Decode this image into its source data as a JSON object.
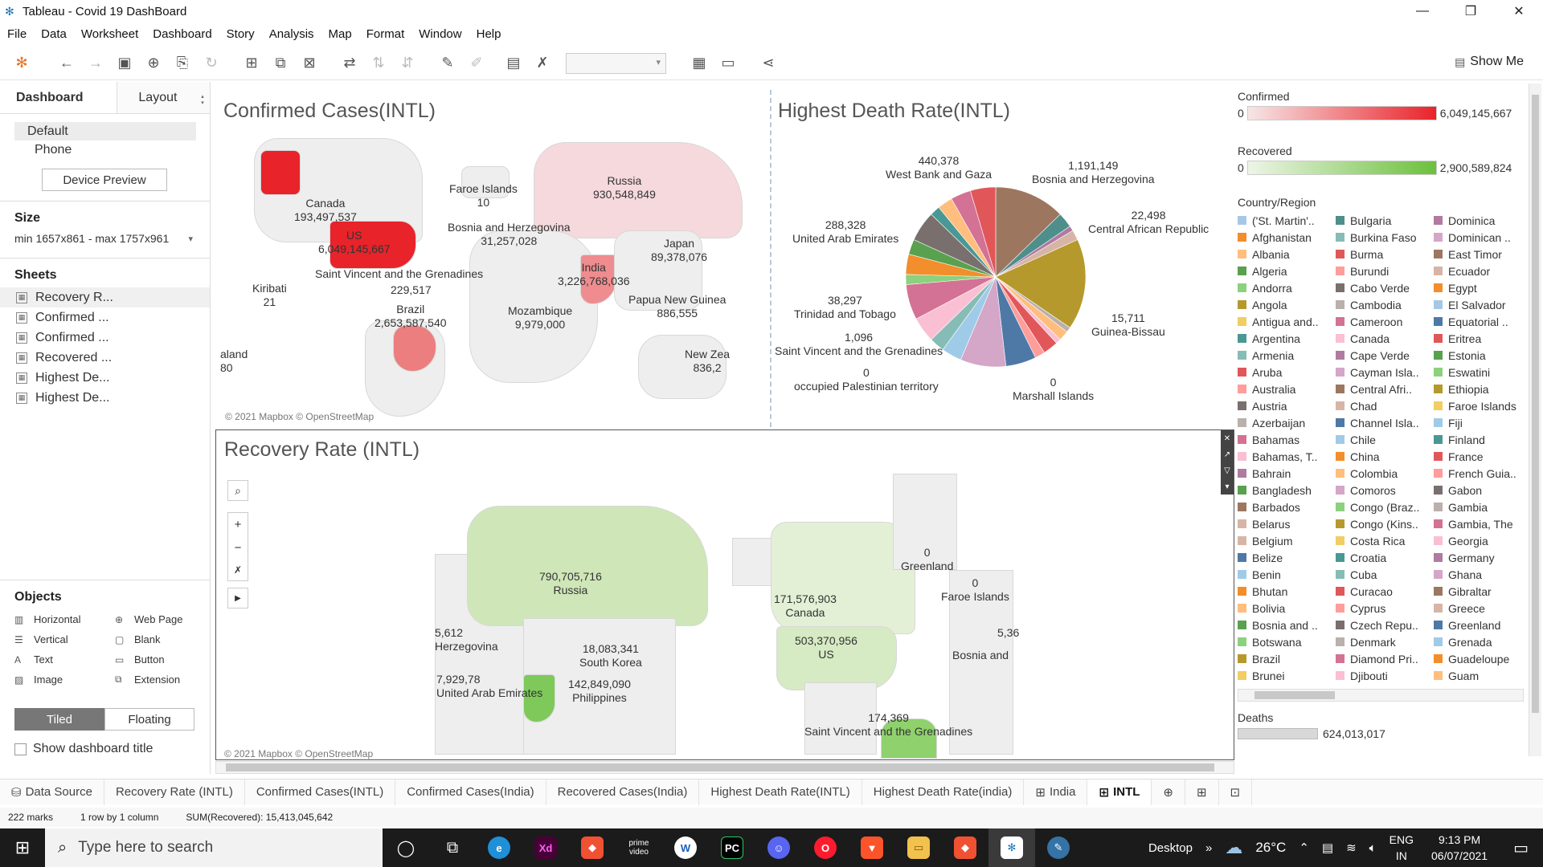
{
  "window": {
    "title": "Tableau - Covid 19 DashBoard",
    "controls": [
      "—",
      "❐",
      "✕"
    ]
  },
  "menu": [
    "File",
    "Data",
    "Worksheet",
    "Dashboard",
    "Story",
    "Analysis",
    "Map",
    "Format",
    "Window",
    "Help"
  ],
  "toolbar": {
    "show_me": "Show Me"
  },
  "left_panel": {
    "tabs": {
      "dashboard": "Dashboard",
      "layout": "Layout"
    },
    "devices": [
      "Default",
      "Phone"
    ],
    "device_preview": "Device Preview",
    "size_title": "Size",
    "size_value": "min 1657x861 - max 1757x961",
    "sheets_title": "Sheets",
    "sheets": [
      "Recovery R...",
      "Confirmed ...",
      "Confirmed ...",
      "Recovered ...",
      "Highest De...",
      "Highest De..."
    ],
    "objects_title": "Objects",
    "objects": [
      {
        "label": "Horizontal",
        "icon": "▥"
      },
      {
        "label": "Web Page",
        "icon": "⊕"
      },
      {
        "label": "Vertical",
        "icon": "☰"
      },
      {
        "label": "Blank",
        "icon": "▢"
      },
      {
        "label": "Text",
        "icon": "A"
      },
      {
        "label": "Button",
        "icon": "▭"
      },
      {
        "label": "Image",
        "icon": "▨"
      },
      {
        "label": "Extension",
        "icon": "⧉"
      }
    ],
    "layout_modes": {
      "tiled": "Tiled",
      "floating": "Floating"
    },
    "show_title": "Show dashboard title"
  },
  "confirmed_pane": {
    "title": "Confirmed Cases(INTL)",
    "labels": [
      {
        "text": "Canada\n193,497,537"
      },
      {
        "text": "US\n6,049,145,667"
      },
      {
        "text": "Faroe Islands\n10"
      },
      {
        "text": "Russia\n930,548,849"
      },
      {
        "text": "Bosnia and Herzegovina\n31,257,028"
      },
      {
        "text": "Japan\n89,378,076"
      },
      {
        "text": "India\n3,226,768,036"
      },
      {
        "text": "Saint Vincent and the Grenadines"
      },
      {
        "text": "Kiribati\n21"
      },
      {
        "text": "229,517"
      },
      {
        "text": "Brazil\n2,653,587,540"
      },
      {
        "text": "Mozambique\n9,979,000"
      },
      {
        "text": "Papua New Guinea\n886,555"
      },
      {
        "text": "New Zea\n836,2"
      },
      {
        "text": "aland\n80"
      }
    ],
    "credit": "© 2021 Mapbox © OpenStreetMap"
  },
  "death_pane": {
    "title": "Highest Death Rate(INTL)",
    "labels": [
      {
        "text": "440,378\nWest Bank and Gaza"
      },
      {
        "text": "1,191,149\nBosnia and Herzegovina"
      },
      {
        "text": "22,498\nCentral African Republic"
      },
      {
        "text": "288,328\nUnited Arab Emirates"
      },
      {
        "text": "15,711\nGuinea-Bissau"
      },
      {
        "text": "38,297\nTrinidad and Tobago"
      },
      {
        "text": "1,096\nSaint Vincent and the Grenadines"
      },
      {
        "text": "0\noccupied Palestinian territory"
      },
      {
        "text": "0\nMarshall Islands"
      }
    ]
  },
  "recovery_pane": {
    "title": "Recovery Rate (INTL)",
    "labels": [
      {
        "text": "790,705,716\nRussia"
      },
      {
        "text": "0\nGreenland"
      },
      {
        "text": "171,576,903\nCanada"
      },
      {
        "text": "0\nFaroe Islands"
      },
      {
        "text": "503,370,956\nUS"
      },
      {
        "text": "Bosnia and"
      },
      {
        "text": "18,083,341\nSouth Korea"
      },
      {
        "text": "142,849,090\nPhilippines"
      },
      {
        "text": "7,929,78\nUnited Arab Emirates"
      },
      {
        "text": "5,612\nHerzegovina"
      },
      {
        "text": "174,369\nSaint Vincent and the Grenadines"
      },
      {
        "text": "5,36"
      }
    ],
    "credit": "© 2021 Mapbox © OpenStreetMap"
  },
  "legend": {
    "confirmed": {
      "title": "Confirmed",
      "min": "0",
      "max": "6,049,145,667",
      "color_low": "#f7e6e6",
      "color_high": "#e8232a"
    },
    "recovered": {
      "title": "Recovered",
      "min": "0",
      "max": "2,900,589,824",
      "color_low": "#eef5e6",
      "color_high": "#6cc03c"
    },
    "country_title": "Country/Region",
    "countries": [
      {
        "name": "('St. Martin'..",
        "color": "#a6c8e6"
      },
      {
        "name": "Bulgaria",
        "color": "#4e8f8b"
      },
      {
        "name": "Dominica",
        "color": "#b07aa1"
      },
      {
        "name": "Afghanistan",
        "color": "#f28e2b"
      },
      {
        "name": "Burkina Faso",
        "color": "#86bcb6"
      },
      {
        "name": "Dominican ..",
        "color": "#d4a6c8"
      },
      {
        "name": "Albania",
        "color": "#ffbe7d"
      },
      {
        "name": "Burma",
        "color": "#e15759"
      },
      {
        "name": "East Timor",
        "color": "#9d7660"
      },
      {
        "name": "Algeria",
        "color": "#59a14f"
      },
      {
        "name": "Burundi",
        "color": "#ff9d9a"
      },
      {
        "name": "Ecuador",
        "color": "#d7b5a6"
      },
      {
        "name": "Andorra",
        "color": "#8cd17d"
      },
      {
        "name": "Cabo Verde",
        "color": "#79706e"
      },
      {
        "name": "Egypt",
        "color": "#f28e2b"
      },
      {
        "name": "Angola",
        "color": "#b6992d"
      },
      {
        "name": "Cambodia",
        "color": "#bab0ac"
      },
      {
        "name": "El Salvador",
        "color": "#a6c8e6"
      },
      {
        "name": "Antigua and..",
        "color": "#f1ce63"
      },
      {
        "name": "Cameroon",
        "color": "#d37295"
      },
      {
        "name": "Equatorial ..",
        "color": "#4e79a7"
      },
      {
        "name": "Argentina",
        "color": "#499894"
      },
      {
        "name": "Canada",
        "color": "#fabfd2"
      },
      {
        "name": "Eritrea",
        "color": "#e15759"
      },
      {
        "name": "Armenia",
        "color": "#86bcb6"
      },
      {
        "name": "Cape Verde",
        "color": "#b07aa1"
      },
      {
        "name": "Estonia",
        "color": "#59a14f"
      },
      {
        "name": "Aruba",
        "color": "#e15759"
      },
      {
        "name": "Cayman Isla..",
        "color": "#d4a6c8"
      },
      {
        "name": "Eswatini",
        "color": "#8cd17d"
      },
      {
        "name": "Australia",
        "color": "#ff9d9a"
      },
      {
        "name": "Central Afri..",
        "color": "#9d7660"
      },
      {
        "name": "Ethiopia",
        "color": "#b6992d"
      },
      {
        "name": "Austria",
        "color": "#79706e"
      },
      {
        "name": "Chad",
        "color": "#d7b5a6"
      },
      {
        "name": "Faroe Islands",
        "color": "#f1ce63"
      },
      {
        "name": "Azerbaijan",
        "color": "#bab0ac"
      },
      {
        "name": "Channel Isla..",
        "color": "#4e79a7"
      },
      {
        "name": "Fiji",
        "color": "#a0cbe8"
      },
      {
        "name": "Bahamas",
        "color": "#d37295"
      },
      {
        "name": "Chile",
        "color": "#a0cbe8"
      },
      {
        "name": "Finland",
        "color": "#499894"
      },
      {
        "name": "Bahamas, T..",
        "color": "#fabfd2"
      },
      {
        "name": "China",
        "color": "#f28e2b"
      },
      {
        "name": "France",
        "color": "#e15759"
      },
      {
        "name": "Bahrain",
        "color": "#b07aa1"
      },
      {
        "name": "Colombia",
        "color": "#ffbe7d"
      },
      {
        "name": "French Guia..",
        "color": "#ff9d9a"
      },
      {
        "name": "Bangladesh",
        "color": "#59a14f"
      },
      {
        "name": "Comoros",
        "color": "#d4a6c8"
      },
      {
        "name": "Gabon",
        "color": "#79706e"
      },
      {
        "name": "Barbados",
        "color": "#9d7660"
      },
      {
        "name": "Congo (Braz..",
        "color": "#8cd17d"
      },
      {
        "name": "Gambia",
        "color": "#bab0ac"
      },
      {
        "name": "Belarus",
        "color": "#d7b5a6"
      },
      {
        "name": "Congo (Kins..",
        "color": "#b6992d"
      },
      {
        "name": "Gambia, The",
        "color": "#d37295"
      },
      {
        "name": "Belgium",
        "color": "#d7b5a6"
      },
      {
        "name": "Costa Rica",
        "color": "#f1ce63"
      },
      {
        "name": "Georgia",
        "color": "#fabfd2"
      },
      {
        "name": "Belize",
        "color": "#4e79a7"
      },
      {
        "name": "Croatia",
        "color": "#499894"
      },
      {
        "name": "Germany",
        "color": "#b07aa1"
      },
      {
        "name": "Benin",
        "color": "#a0cbe8"
      },
      {
        "name": "Cuba",
        "color": "#86bcb6"
      },
      {
        "name": "Ghana",
        "color": "#d4a6c8"
      },
      {
        "name": "Bhutan",
        "color": "#f28e2b"
      },
      {
        "name": "Curacao",
        "color": "#e15759"
      },
      {
        "name": "Gibraltar",
        "color": "#9d7660"
      },
      {
        "name": "Bolivia",
        "color": "#ffbe7d"
      },
      {
        "name": "Cyprus",
        "color": "#ff9d9a"
      },
      {
        "name": "Greece",
        "color": "#d7b5a6"
      },
      {
        "name": "Bosnia and ..",
        "color": "#59a14f"
      },
      {
        "name": "Czech Repu..",
        "color": "#79706e"
      },
      {
        "name": "Greenland",
        "color": "#4e79a7"
      },
      {
        "name": "Botswana",
        "color": "#8cd17d"
      },
      {
        "name": "Denmark",
        "color": "#bab0ac"
      },
      {
        "name": "Grenada",
        "color": "#a0cbe8"
      },
      {
        "name": "Brazil",
        "color": "#b6992d"
      },
      {
        "name": "Diamond Pri..",
        "color": "#d37295"
      },
      {
        "name": "Guadeloupe",
        "color": "#f28e2b"
      },
      {
        "name": "Brunei",
        "color": "#f1ce63"
      },
      {
        "name": "Djibouti",
        "color": "#fabfd2"
      },
      {
        "name": "Guam",
        "color": "#ffbe7d"
      }
    ],
    "deaths_title": "Deaths",
    "deaths_value": "624,013,017"
  },
  "sheet_tabs": [
    {
      "label": "Data Source",
      "icon": "⛁",
      "active": false
    },
    {
      "label": "Recovery Rate (INTL)",
      "icon": "",
      "active": false
    },
    {
      "label": "Confirmed Cases(INTL)",
      "icon": "",
      "active": false
    },
    {
      "label": "Confirmed Cases(India)",
      "icon": "",
      "active": false
    },
    {
      "label": "Recovered Cases(India)",
      "icon": "",
      "active": false
    },
    {
      "label": "Highest Death Rate(INTL)",
      "icon": "",
      "active": false
    },
    {
      "label": "Highest Death Rate(india)",
      "icon": "",
      "active": false
    },
    {
      "label": "India",
      "icon": "⊞",
      "active": false
    },
    {
      "label": "INTL",
      "icon": "⊞",
      "active": true
    }
  ],
  "status": {
    "marks": "222 marks",
    "rows": "1 row by 1 column",
    "sum": "SUM(Recovered): 15,413,045,642"
  },
  "taskbar": {
    "search_placeholder": "Type here to search",
    "desktop": "Desktop",
    "temperature": "26°C",
    "lang": "ENG",
    "region": "IN",
    "time": "9:13 PM",
    "date": "06/07/2021"
  }
}
